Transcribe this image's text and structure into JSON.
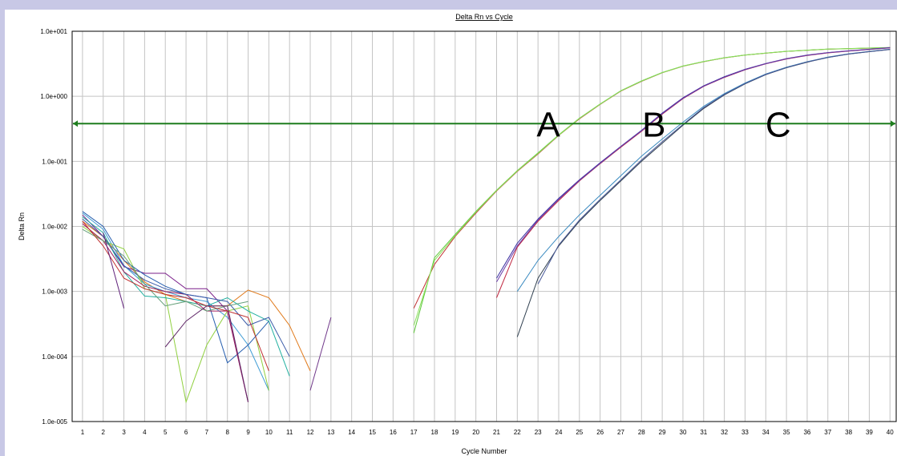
{
  "chart_data": {
    "type": "line",
    "title": "Delta Rn vs Cycle",
    "xlabel": "Cycle Number",
    "ylabel": "Delta Rn",
    "yscale": "log",
    "ylim": [
      1e-05,
      10
    ],
    "xlim": [
      0.5,
      40.3
    ],
    "x_ticks": [
      "1",
      "2",
      "3",
      "4",
      "5",
      "6",
      "7",
      "8",
      "9",
      "10",
      "11",
      "12",
      "13",
      "14",
      "15",
      "16",
      "17",
      "18",
      "19",
      "20",
      "21",
      "22",
      "23",
      "24",
      "25",
      "26",
      "27",
      "28",
      "29",
      "30",
      "31",
      "32",
      "33",
      "34",
      "35",
      "36",
      "37",
      "38",
      "39",
      "40"
    ],
    "y_ticks": [
      "1.0e+001",
      "1.0e+000",
      "1.0e-001",
      "1.0e-002",
      "1.0e-003",
      "1.0e-004",
      "1.0e-005"
    ],
    "grid": true,
    "threshold": 0.38,
    "threshold_color": "#1e7d1e",
    "annotations": [
      {
        "text": "A",
        "x": 23.5,
        "y": 0.38
      },
      {
        "text": "B",
        "x": 28.6,
        "y": 0.38
      },
      {
        "text": "C",
        "x": 34.6,
        "y": 0.38
      }
    ],
    "series": [
      {
        "color": "#e07818",
        "x": [
          1,
          2,
          3,
          4,
          5,
          6,
          7,
          8,
          9,
          10,
          11,
          12
        ],
        "y": [
          0.012,
          0.007,
          0.003,
          0.0014,
          0.0009,
          0.0007,
          0.0006,
          0.0006,
          0.00105,
          0.0008,
          0.0003,
          6e-05
        ]
      },
      {
        "color": "#7a1f8a",
        "x": [
          1,
          2,
          3,
          4,
          5,
          6,
          7,
          8,
          9
        ],
        "y": [
          0.015,
          0.007,
          0.0024,
          0.0019,
          0.0019,
          0.0011,
          0.0011,
          0.0005,
          2e-05
        ]
      },
      {
        "color": "#3d9bd4",
        "x": [
          1,
          2,
          3,
          4,
          5,
          6,
          7,
          8,
          9,
          10
        ],
        "y": [
          0.016,
          0.009,
          0.0025,
          0.0013,
          0.001,
          0.0008,
          0.0007,
          0.0004,
          0.00015,
          3e-05
        ]
      },
      {
        "color": "#90d040",
        "x": [
          1,
          2,
          3,
          4,
          5,
          6,
          7,
          8,
          9,
          10
        ],
        "y": [
          0.01,
          0.006,
          0.0045,
          0.0011,
          0.0009,
          2e-05,
          0.00015,
          0.0005,
          0.0006,
          3e-05
        ]
      },
      {
        "color": "#20b0a0",
        "x": [
          1,
          2,
          3,
          4,
          5,
          6,
          7,
          8,
          9,
          10,
          11
        ],
        "y": [
          0.014,
          0.008,
          0.002,
          0.00085,
          0.0008,
          0.0007,
          0.0006,
          0.0008,
          0.0005,
          0.00035,
          5e-05
        ]
      },
      {
        "color": "#2860b0",
        "x": [
          1,
          2,
          3,
          4,
          5,
          6,
          7,
          8,
          9,
          10
        ],
        "y": [
          0.017,
          0.01,
          0.003,
          0.0018,
          0.0012,
          0.0009,
          0.0008,
          8e-05,
          0.00015,
          0.00035
        ]
      },
      {
        "color": "#a02060",
        "x": [
          1,
          2,
          3,
          4,
          5,
          6,
          7,
          8,
          9
        ],
        "y": [
          0.011,
          0.006,
          0.002,
          0.0012,
          0.001,
          0.0009,
          0.0005,
          0.0005,
          2e-05
        ]
      },
      {
        "color": "#3a5aa8",
        "x": [
          1,
          2,
          3,
          4,
          5,
          6,
          7,
          8,
          9,
          10,
          11
        ],
        "y": [
          0.013,
          0.007,
          0.0025,
          0.0015,
          0.0011,
          0.0009,
          0.0008,
          0.0007,
          0.0003,
          0.0004,
          0.0001
        ]
      },
      {
        "color": "#66a07a",
        "x": [
          1,
          2,
          3,
          4,
          5,
          6,
          7,
          8,
          9
        ],
        "y": [
          0.009,
          0.006,
          0.0035,
          0.0013,
          0.0006,
          0.0007,
          0.0005,
          0.0006,
          0.0007
        ]
      },
      {
        "color": "#c03030",
        "x": [
          1,
          2,
          3,
          4,
          5,
          6,
          7,
          8,
          9,
          10
        ],
        "y": [
          0.012,
          0.005,
          0.0016,
          0.0011,
          0.0009,
          0.0008,
          0.0006,
          0.0005,
          0.0004,
          6e-05
        ]
      },
      {
        "color": "#60207a",
        "x": [
          2,
          3
        ],
        "y": [
          0.008,
          0.00055
        ]
      },
      {
        "color": "#602868",
        "x": [
          5,
          6,
          7,
          8,
          9
        ],
        "y": [
          0.00014,
          0.00035,
          0.0006,
          0.0006,
          2e-05
        ]
      },
      {
        "color": "#70388a",
        "x": [
          12,
          13
        ],
        "y": [
          3e-05,
          0.0004
        ]
      },
      {
        "color": "#c03030",
        "x": [
          17,
          18,
          19,
          20,
          21,
          22,
          23,
          24,
          25,
          26,
          27,
          28,
          29,
          30,
          31,
          32,
          33,
          34,
          35,
          36,
          37,
          38,
          39,
          40
        ],
        "y": [
          0.00055,
          0.0026,
          0.007,
          0.016,
          0.035,
          0.07,
          0.13,
          0.25,
          0.45,
          0.75,
          1.2,
          1.7,
          2.3,
          2.9,
          3.4,
          3.9,
          4.3,
          4.6,
          4.9,
          5.1,
          5.3,
          5.4,
          5.5,
          5.6
        ]
      },
      {
        "color": "#5cc838",
        "x": [
          17,
          18,
          19,
          20,
          21,
          22,
          23,
          24,
          25,
          26,
          27,
          28,
          29,
          30,
          31,
          32,
          33,
          34,
          35,
          36,
          37,
          38,
          39,
          40
        ],
        "y": [
          0.00023,
          0.0033,
          0.0075,
          0.017,
          0.036,
          0.072,
          0.135,
          0.255,
          0.46,
          0.76,
          1.22,
          1.72,
          2.32,
          2.92,
          3.42,
          3.92,
          4.32,
          4.62,
          4.92,
          5.12,
          5.32,
          5.42,
          5.52,
          5.62
        ]
      },
      {
        "color": "#8ae05a",
        "x": [
          17,
          18,
          19,
          20,
          21,
          22,
          23,
          24,
          25,
          26,
          27,
          28,
          29,
          30,
          31,
          32,
          33,
          34,
          35,
          36,
          37,
          38,
          39,
          40
        ],
        "y": [
          0.0003,
          0.003,
          0.0072,
          0.0165,
          0.0355,
          0.071,
          0.132,
          0.252,
          0.455,
          0.755,
          1.21,
          1.71,
          2.31,
          2.91,
          3.41,
          3.91,
          4.31,
          4.61,
          4.91,
          5.11,
          5.31,
          5.41,
          5.51,
          5.61
        ]
      },
      {
        "color": "#3a30a0",
        "x": [
          21,
          22,
          23,
          24,
          25,
          26,
          27,
          28,
          29,
          30,
          31,
          32,
          33,
          34,
          35,
          36,
          37,
          38,
          39,
          40
        ],
        "y": [
          0.0016,
          0.0055,
          0.013,
          0.027,
          0.052,
          0.095,
          0.17,
          0.3,
          0.55,
          0.95,
          1.45,
          2.0,
          2.6,
          3.2,
          3.8,
          4.3,
          4.7,
          5.0,
          5.3,
          5.6
        ]
      },
      {
        "color": "#c02840",
        "x": [
          21,
          22,
          23,
          24,
          25,
          26,
          27,
          28,
          29,
          30,
          31,
          32,
          33,
          34,
          35,
          36,
          37,
          38,
          39,
          40
        ],
        "y": [
          0.0008,
          0.0048,
          0.012,
          0.025,
          0.05,
          0.092,
          0.165,
          0.29,
          0.53,
          0.92,
          1.42,
          1.95,
          2.55,
          3.15,
          3.75,
          4.25,
          4.65,
          4.95,
          5.25,
          5.55
        ]
      },
      {
        "color": "#6a3aa8",
        "x": [
          21,
          22,
          23,
          24,
          25,
          26,
          27,
          28,
          29,
          30,
          31,
          32,
          33,
          34,
          35,
          36,
          37,
          38,
          39,
          40
        ],
        "y": [
          0.0014,
          0.005,
          0.0125,
          0.026,
          0.051,
          0.093,
          0.168,
          0.295,
          0.54,
          0.93,
          1.43,
          1.97,
          2.57,
          3.17,
          3.77,
          4.27,
          4.67,
          4.97,
          5.27,
          5.57
        ]
      },
      {
        "color": "#3a8ac0",
        "x": [
          22,
          23,
          24,
          25,
          26,
          27,
          28,
          29,
          30,
          31,
          32,
          33,
          34,
          35,
          36,
          37,
          38,
          39,
          40
        ],
        "y": [
          0.001,
          0.003,
          0.007,
          0.015,
          0.03,
          0.06,
          0.12,
          0.22,
          0.4,
          0.7,
          1.1,
          1.6,
          2.2,
          2.8,
          3.4,
          4.0,
          4.5,
          4.9,
          5.3
        ]
      },
      {
        "color": "#304050",
        "x": [
          22,
          23,
          24,
          25,
          26,
          27,
          28,
          29,
          30,
          31,
          32,
          33,
          34,
          35,
          36,
          37,
          38,
          39,
          40
        ],
        "y": [
          0.0002,
          0.0016,
          0.005,
          0.012,
          0.025,
          0.05,
          0.1,
          0.19,
          0.36,
          0.65,
          1.05,
          1.55,
          2.15,
          2.75,
          3.35,
          3.95,
          4.45,
          4.85,
          5.25
        ]
      },
      {
        "color": "#485898",
        "x": [
          23,
          24,
          25,
          26,
          27,
          28,
          29,
          30,
          31,
          32,
          33,
          34,
          35,
          36,
          37,
          38,
          39,
          40
        ],
        "y": [
          0.0013,
          0.0052,
          0.0125,
          0.026,
          0.052,
          0.105,
          0.2,
          0.37,
          0.67,
          1.07,
          1.57,
          2.17,
          2.77,
          3.37,
          3.97,
          4.47,
          4.87,
          5.27
        ]
      }
    ]
  }
}
